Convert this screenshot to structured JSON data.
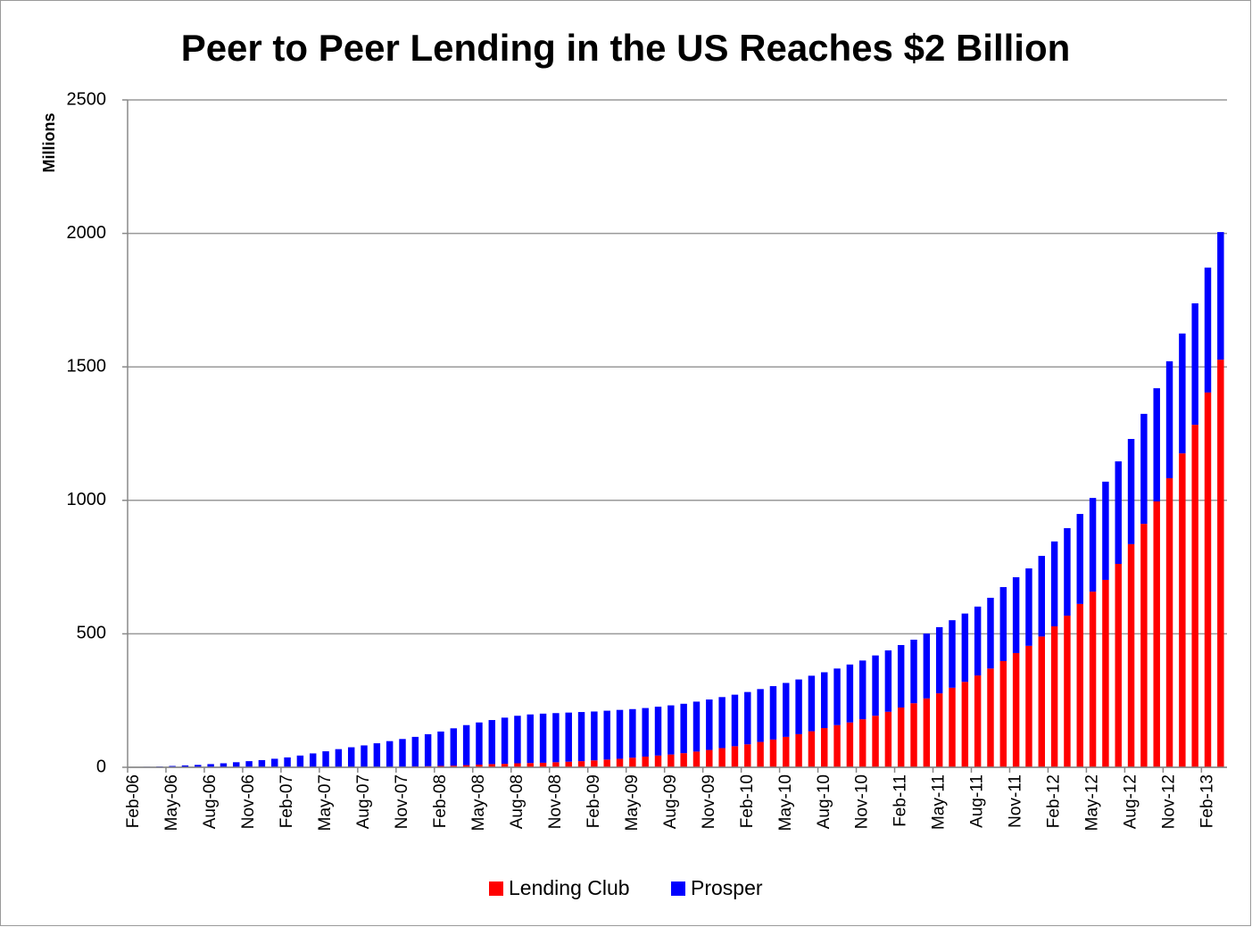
{
  "chart_data": {
    "type": "stacked_bar",
    "title": "Peer to Peer Lending in the US Reaches $2 Billion",
    "y_label": "Millions",
    "categories": [
      "Feb-06",
      null,
      null,
      "May-06",
      null,
      null,
      "Aug-06",
      null,
      null,
      "Nov-06",
      null,
      null,
      "Feb-07",
      null,
      null,
      "May-07",
      null,
      null,
      "Aug-07",
      null,
      null,
      "Nov-07",
      null,
      null,
      "Feb-08",
      null,
      null,
      "May-08",
      null,
      null,
      "Aug-08",
      null,
      null,
      "Nov-08",
      null,
      null,
      "Feb-09",
      null,
      null,
      "May-09",
      null,
      null,
      "Aug-09",
      null,
      null,
      "Nov-09",
      null,
      null,
      "Feb-10",
      null,
      null,
      "May-10",
      null,
      null,
      "Aug-10",
      null,
      null,
      "Nov-10",
      null,
      null,
      "Feb-11",
      null,
      null,
      "May-11",
      null,
      null,
      "Aug-11",
      null,
      null,
      "Nov-11",
      null,
      null,
      "Feb-12",
      null,
      null,
      "May-12",
      null,
      null,
      "Aug-12",
      null,
      null,
      "Nov-12",
      null,
      null,
      "Feb-13",
      null
    ],
    "series": [
      {
        "name": "Lending Club",
        "color": "#ff0000",
        "values": [
          0,
          0,
          0,
          0,
          0,
          0,
          0,
          0,
          0,
          0,
          0,
          0,
          0,
          0,
          0,
          0,
          0,
          0,
          0,
          0,
          1,
          2,
          3,
          4,
          5,
          6,
          8,
          10,
          12,
          13,
          15,
          16,
          17,
          19,
          21,
          23,
          26,
          29,
          32,
          36,
          40,
          44,
          48,
          53,
          59,
          65,
          72,
          79,
          86,
          95,
          104,
          114,
          124,
          135,
          147,
          158,
          168,
          180,
          193,
          208,
          224,
          240,
          258,
          277,
          298,
          320,
          344,
          370,
          398,
          428,
          455,
          490,
          528,
          568,
          612,
          658,
          702,
          762,
          836,
          912,
          996,
          1083,
          1176,
          1283,
          1404,
          1527
        ]
      },
      {
        "name": "Prosper",
        "color": "#0000ff",
        "values": [
          1,
          2,
          3,
          5,
          7,
          9,
          12,
          15,
          19,
          23,
          27,
          32,
          37,
          44,
          52,
          60,
          68,
          75,
          82,
          90,
          97,
          104,
          111,
          120,
          129,
          140,
          150,
          158,
          165,
          173,
          178,
          182,
          184,
          184,
          184,
          184,
          183,
          183,
          183,
          182,
          182,
          183,
          184,
          185,
          187,
          189,
          191,
          193,
          196,
          198,
          200,
          202,
          205,
          208,
          209,
          212,
          217,
          220,
          226,
          230,
          234,
          238,
          243,
          248,
          253,
          256,
          258,
          265,
          277,
          284,
          290,
          302,
          318,
          328,
          337,
          351,
          368,
          384,
          394,
          412,
          424,
          438,
          449,
          455,
          468,
          478
        ]
      }
    ],
    "ylim": [
      0,
      2500
    ],
    "yticks": [
      0,
      500,
      1000,
      1500,
      2000,
      2500
    ],
    "grid": true,
    "legend": "bottom"
  }
}
